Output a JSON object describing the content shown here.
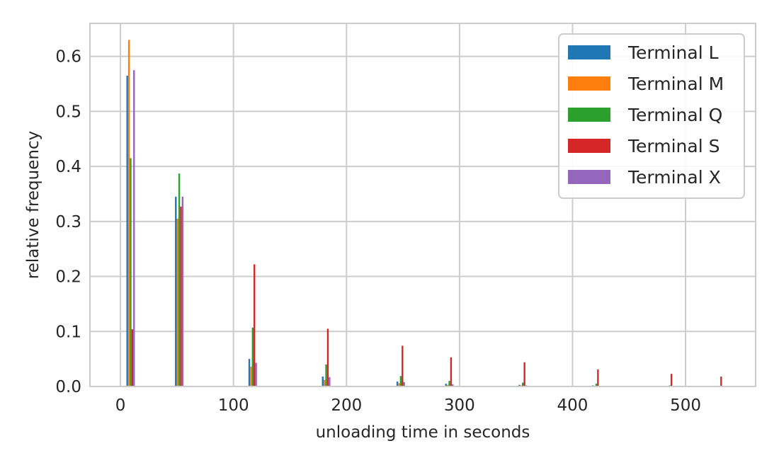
{
  "chart_data": {
    "type": "bar",
    "xlabel": "unloading time in seconds",
    "ylabel": "relative frequency",
    "xlim": [
      -27,
      562
    ],
    "ylim": [
      0,
      0.66
    ],
    "xticks": [
      0,
      100,
      200,
      300,
      400,
      500
    ],
    "xtick_labels": [
      "0",
      "100",
      "200",
      "300",
      "400",
      "500"
    ],
    "yticks": [
      0.0,
      0.1,
      0.2,
      0.3,
      0.4,
      0.5,
      0.6
    ],
    "ytick_labels": [
      "0.0",
      "0.1",
      "0.2",
      "0.3",
      "0.4",
      "0.5",
      "0.6"
    ],
    "grid": true,
    "legend_position": "top-right",
    "bin_centers": [
      9,
      52,
      117,
      182,
      248,
      291,
      356,
      421,
      486,
      530
    ],
    "series": [
      {
        "name": "Terminal L",
        "color": "#1f77b4",
        "values": [
          0.565,
          0.345,
          0.05,
          0.018,
          0.009,
          0.005,
          0.003,
          0.002,
          0.001,
          0.0
        ]
      },
      {
        "name": "Terminal M",
        "color": "#ff7f0e",
        "values": [
          0.63,
          0.305,
          0.036,
          0.012,
          0.006,
          0.003,
          0.002,
          0.001,
          0.0,
          0.0
        ]
      },
      {
        "name": "Terminal Q",
        "color": "#2ca02c",
        "values": [
          0.415,
          0.387,
          0.107,
          0.04,
          0.019,
          0.01,
          0.007,
          0.005,
          0.002,
          0.001
        ]
      },
      {
        "name": "Terminal S",
        "color": "#d62728",
        "values": [
          0.104,
          0.327,
          0.222,
          0.105,
          0.074,
          0.053,
          0.044,
          0.031,
          0.023,
          0.018
        ]
      },
      {
        "name": "Terminal X",
        "color": "#9467bd",
        "values": [
          0.575,
          0.345,
          0.043,
          0.017,
          0.008,
          0.004,
          0.002,
          0.001,
          0.0,
          0.0
        ]
      }
    ]
  }
}
